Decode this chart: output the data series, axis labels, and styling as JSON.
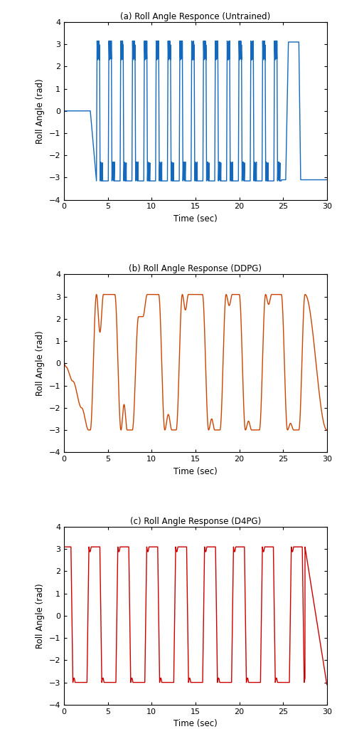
{
  "title_a": "(a) Roll Angle Responce (Untrained)",
  "title_b": "(b) Roll Angle Response (DDPG)",
  "title_c": "(c) Roll Angle Response (D4PG)",
  "xlabel": "Time (sec)",
  "ylabel": "Roll Angle (rad)",
  "xlim": [
    0,
    30
  ],
  "ylim": [
    -4,
    4
  ],
  "xticks": [
    0,
    5,
    10,
    15,
    20,
    25,
    30
  ],
  "yticks": [
    -4,
    -3,
    -2,
    -1,
    0,
    1,
    2,
    3,
    4
  ],
  "color_a": "#1469bd",
  "color_b": "#cc4400",
  "color_c": "#cc0000",
  "linewidth": 1.0,
  "background": "#ffffff"
}
